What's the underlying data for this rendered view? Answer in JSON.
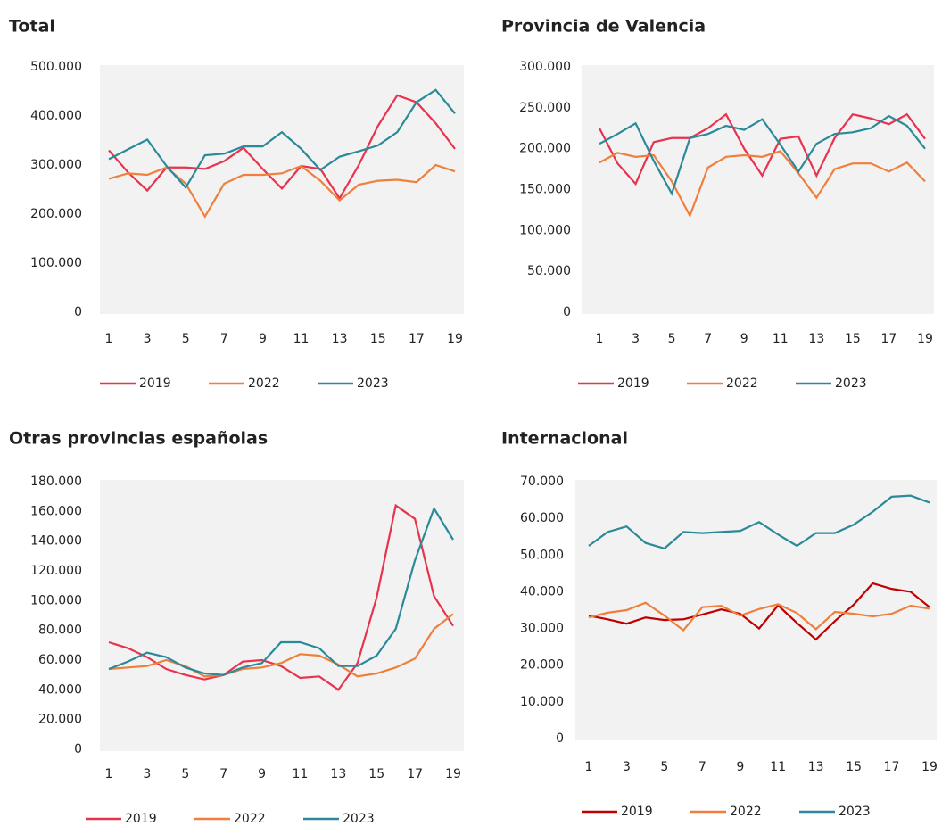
{
  "chart_data": [
    {
      "type": "line",
      "title": "Total",
      "x": [
        1,
        2,
        3,
        4,
        5,
        6,
        7,
        8,
        9,
        10,
        11,
        12,
        13,
        14,
        15,
        16,
        17,
        18,
        19
      ],
      "xlim": [
        1,
        19
      ],
      "xticks": [
        1,
        3,
        5,
        7,
        9,
        11,
        13,
        15,
        17,
        19
      ],
      "ylim": [
        0,
        500000
      ],
      "yticks": [
        0,
        {
          "value": 100000,
          "label": "100.000"
        },
        {
          "value": 200000,
          "label": "200.000"
        },
        {
          "value": 300000,
          "label": "300.000"
        },
        {
          "value": 400000,
          "label": "400.000"
        },
        {
          "value": 500000,
          "label": "500.000"
        }
      ],
      "series": [
        {
          "name": "2019",
          "color": "#e8334f",
          "values": [
            330000,
            285000,
            248000,
            295000,
            295000,
            292000,
            308000,
            335000,
            292000,
            252000,
            298000,
            292000,
            232000,
            300000,
            380000,
            442000,
            428000,
            385000,
            333000
          ]
        },
        {
          "name": "2022",
          "color": "#f07f3c",
          "values": [
            272000,
            283000,
            280000,
            295000,
            262000,
            195000,
            262000,
            280000,
            280000,
            283000,
            298000,
            268000,
            228000,
            260000,
            268000,
            270000,
            265000,
            300000,
            287000
          ]
        },
        {
          "name": "2023",
          "color": "#2a8a99",
          "values": [
            312000,
            332000,
            352000,
            298000,
            254000,
            320000,
            323000,
            338000,
            338000,
            367000,
            333000,
            290000,
            317000,
            328000,
            340000,
            367000,
            428000,
            453000,
            405000
          ]
        }
      ]
    },
    {
      "type": "line",
      "title": "Provincia de Valencia",
      "x": [
        1,
        2,
        3,
        4,
        5,
        6,
        7,
        8,
        9,
        10,
        11,
        12,
        13,
        14,
        15,
        16,
        17,
        18,
        19
      ],
      "xlim": [
        1,
        19
      ],
      "xticks": [
        1,
        3,
        5,
        7,
        9,
        11,
        13,
        15,
        17,
        19
      ],
      "ylim": [
        0,
        300000
      ],
      "yticks": [
        0,
        {
          "value": 50000,
          "label": "50.000"
        },
        {
          "value": 100000,
          "label": "100.000"
        },
        {
          "value": 150000,
          "label": "150.000"
        },
        {
          "value": 200000,
          "label": "200.000"
        },
        {
          "value": 250000,
          "label": "250.000"
        },
        {
          "value": 300000,
          "label": "300.000"
        }
      ],
      "series": [
        {
          "name": "2019",
          "color": "#e8334f",
          "values": [
            225000,
            182000,
            157000,
            208000,
            213000,
            213000,
            225000,
            242000,
            200000,
            167000,
            212000,
            215000,
            167000,
            213000,
            242000,
            237000,
            230000,
            242000,
            212000
          ]
        },
        {
          "name": "2022",
          "color": "#f07f3c",
          "values": [
            183000,
            195000,
            190000,
            192000,
            160000,
            118000,
            177000,
            190000,
            192000,
            190000,
            197000,
            170000,
            140000,
            175000,
            182000,
            182000,
            172000,
            183000,
            160000
          ]
        },
        {
          "name": "2023",
          "color": "#2a8a99",
          "values": [
            206000,
            218000,
            231000,
            185000,
            145000,
            213000,
            218000,
            228000,
            223000,
            236000,
            205000,
            172000,
            206000,
            218000,
            220000,
            225000,
            240000,
            228000,
            200000
          ]
        }
      ]
    },
    {
      "type": "line",
      "title": "Otras provincias españolas",
      "x": [
        1,
        2,
        3,
        4,
        5,
        6,
        7,
        8,
        9,
        10,
        11,
        12,
        13,
        14,
        15,
        16,
        17,
        18,
        19
      ],
      "xlim": [
        1,
        19
      ],
      "xticks": [
        1,
        3,
        5,
        7,
        9,
        11,
        13,
        15,
        17,
        19
      ],
      "ylim": [
        0,
        180000
      ],
      "yticks": [
        0,
        {
          "value": 20000,
          "label": "20.000"
        },
        {
          "value": 40000,
          "label": "40.000"
        },
        {
          "value": 60000,
          "label": "60.000"
        },
        {
          "value": 80000,
          "label": "80.000"
        },
        {
          "value": 100000,
          "label": "100.000"
        },
        {
          "value": 120000,
          "label": "120.000"
        },
        {
          "value": 140000,
          "label": "140.000"
        },
        {
          "value": 160000,
          "label": "160.000"
        },
        {
          "value": 180000,
          "label": "180.000"
        }
      ],
      "series": [
        {
          "name": "2019",
          "color": "#e8334f",
          "values": [
            72000,
            68000,
            62000,
            54000,
            50000,
            47000,
            50000,
            59000,
            60000,
            56000,
            48000,
            49000,
            40000,
            58000,
            102000,
            164000,
            155000,
            103000,
            83000
          ]
        },
        {
          "name": "2022",
          "color": "#f07f3c",
          "values": [
            54000,
            55000,
            56000,
            60000,
            56000,
            49000,
            50000,
            54000,
            55000,
            58000,
            64000,
            63000,
            57000,
            49000,
            51000,
            55000,
            61000,
            81000,
            91000
          ]
        },
        {
          "name": "2023",
          "color": "#2a8a99",
          "values": [
            54000,
            59000,
            65000,
            62000,
            55000,
            51000,
            50000,
            55000,
            58000,
            72000,
            72000,
            68000,
            56000,
            56000,
            63000,
            81000,
            127000,
            162000,
            141000
          ]
        }
      ]
    },
    {
      "type": "line",
      "title": "Internacional",
      "x": [
        1,
        2,
        3,
        4,
        5,
        6,
        7,
        8,
        9,
        10,
        11,
        12,
        13,
        14,
        15,
        16,
        17,
        18,
        19
      ],
      "xlim": [
        1,
        19
      ],
      "xticks": [
        1,
        3,
        5,
        7,
        9,
        11,
        13,
        15,
        17,
        19
      ],
      "ylim": [
        0,
        70000
      ],
      "yticks": [
        0,
        {
          "value": 10000,
          "label": "10.000"
        },
        {
          "value": 20000,
          "label": "20.000"
        },
        {
          "value": 30000,
          "label": "30.000"
        },
        {
          "value": 40000,
          "label": "40.000"
        },
        {
          "value": 50000,
          "label": "50.000"
        },
        {
          "value": 60000,
          "label": "60.000"
        },
        {
          "value": 70000,
          "label": "70.000"
        }
      ],
      "series": [
        {
          "name": "2019",
          "color": "#c00000",
          "values": [
            33500,
            32500,
            31300,
            33000,
            32300,
            32500,
            33800,
            35200,
            34000,
            30000,
            36300,
            31500,
            27000,
            32000,
            36500,
            42300,
            40800,
            40000,
            35800
          ]
        },
        {
          "name": "2022",
          "color": "#f07f3c",
          "values": [
            33000,
            34300,
            35000,
            37000,
            33500,
            29500,
            35800,
            36200,
            33500,
            35300,
            36600,
            34200,
            29800,
            34500,
            34000,
            33300,
            34000,
            36200,
            35400
          ]
        },
        {
          "name": "2023",
          "color": "#2a8a99",
          "values": [
            52500,
            56300,
            57800,
            53300,
            51800,
            56300,
            56000,
            56300,
            56600,
            59000,
            55600,
            52500,
            56000,
            56000,
            58300,
            61800,
            65900,
            66200,
            64300
          ]
        }
      ]
    }
  ]
}
